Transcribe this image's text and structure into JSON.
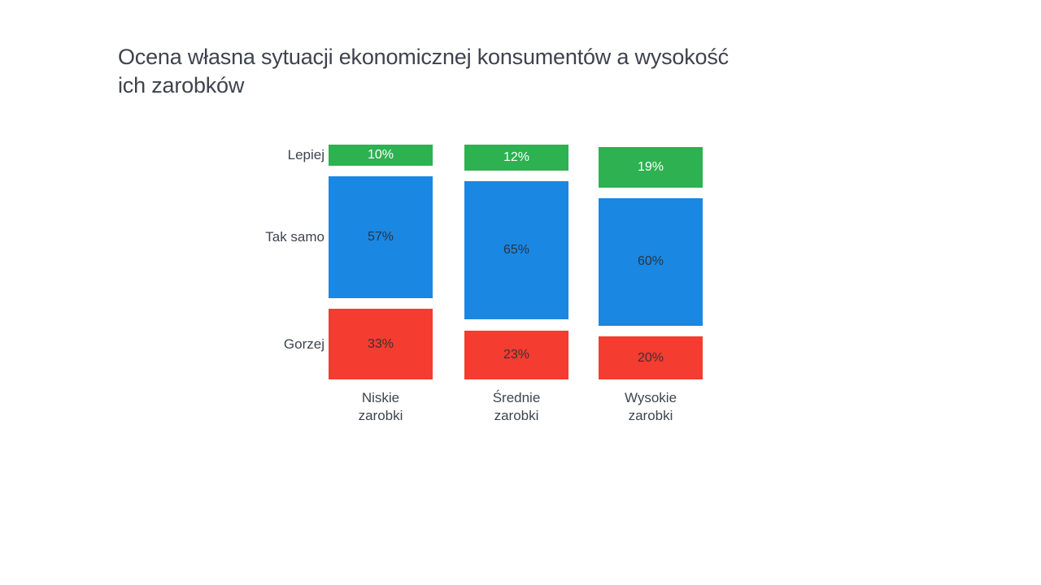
{
  "chart_data": {
    "type": "bar",
    "variant": "stacked-column-with-gaps",
    "title": "Ocena własna sytuacji ekonomicznej konsumentów a wysokość\nich zarobków",
    "categories": [
      "Niskie\nzarobki",
      "Średnie\nzarobki",
      "Wysokie\nzarobki"
    ],
    "series": [
      {
        "name": "Lepiej",
        "values": [
          10,
          12,
          19
        ],
        "color": "#2db151",
        "label_color": "#ffffff"
      },
      {
        "name": "Tak samo",
        "values": [
          57,
          65,
          60
        ],
        "color": "#1a87e2",
        "label_color": "#2b3440"
      },
      {
        "name": "Gorzej",
        "values": [
          33,
          23,
          20
        ],
        "color": "#f43c30",
        "label_color": "#3b3231"
      }
    ],
    "value_suffix": "%",
    "stack_order_bottom_to_top": [
      "Gorzej",
      "Tak samo",
      "Lepiej"
    ],
    "row_labels_position": "left",
    "grid": false,
    "axes_visible": false,
    "ylim": [
      0,
      100
    ],
    "background": "#ffffff"
  }
}
